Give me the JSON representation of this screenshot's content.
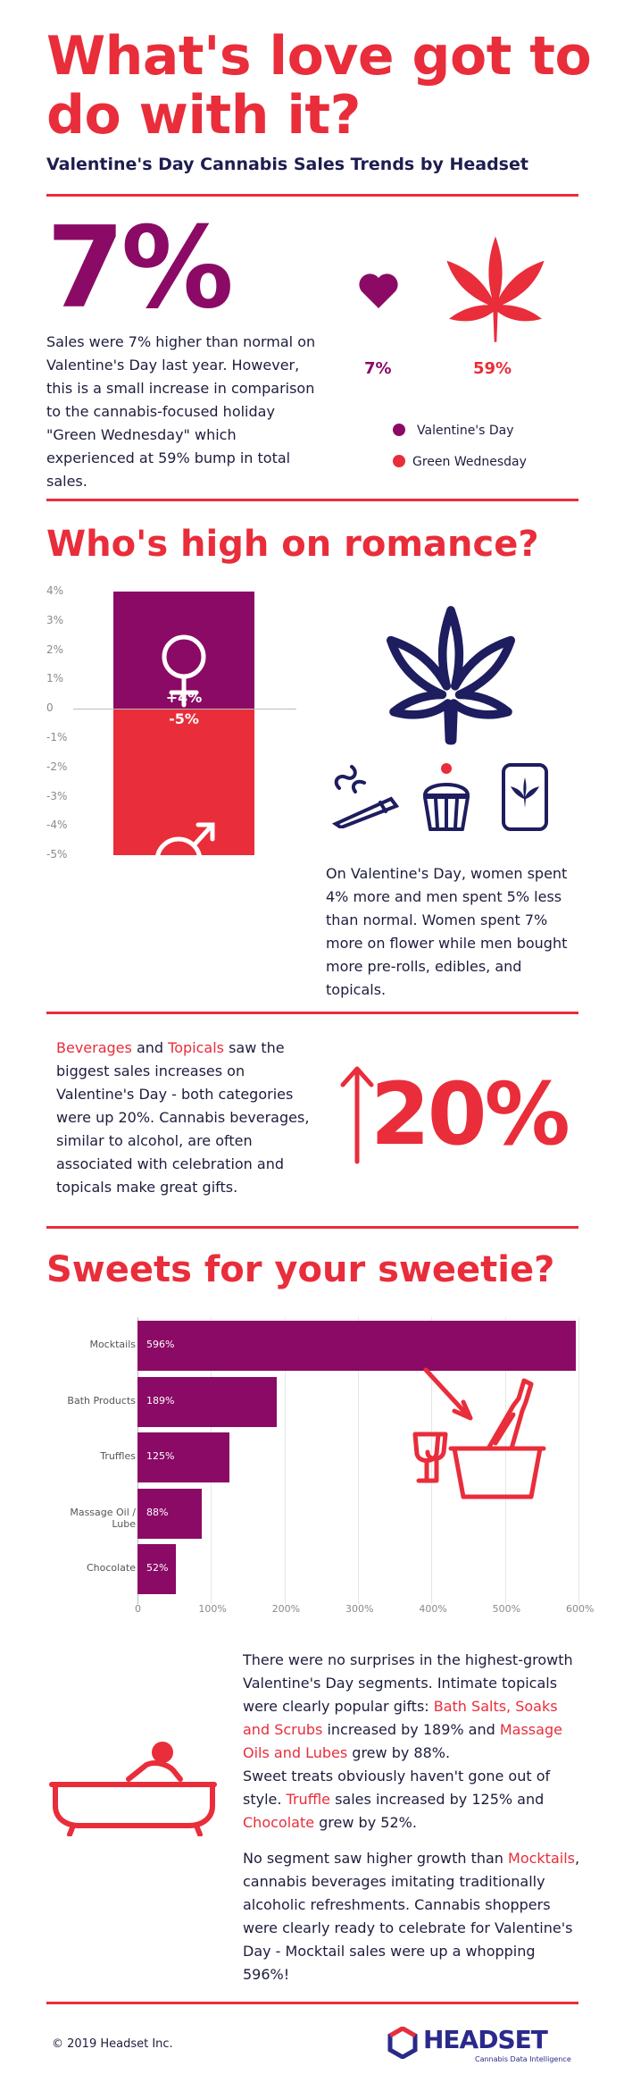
{
  "header": {
    "title": "What's love got to do with it?",
    "subtitle": "Valentine's Day Cannabis Sales Trends by Headset"
  },
  "section1": {
    "big_stat": "7%",
    "text": "Sales were 7% higher than normal on Valentine's Day last year. However, this is a small increase in comparison to the cannabis-focused holiday \"Green Wednesday\" which experienced at 59% bump in total sales.",
    "heart_label": "7%",
    "leaf_label": "59%",
    "legend": [
      {
        "label": "Valentine's Day",
        "color": "#8b0a66"
      },
      {
        "label": "Green Wednesday",
        "color": "#e92d3a"
      }
    ]
  },
  "section2": {
    "title": "Who's high on romance?",
    "women_label": "+4%",
    "men_label": "-5%",
    "text": "On Valentine's Day, women spent 4% more and men spent 5% less than normal. Women spent 7% more on flower while men bought more pre-rolls, edibles, and topicals."
  },
  "section3": {
    "beverages": "Beverages",
    "and": "and",
    "topicals": "Topicals",
    "text_after": "saw the biggest sales increases on Valentine's Day - both categories were up 20%. Cannabis beverages, similar to alcohol, are often associated with celebration and topicals make great gifts.",
    "big_stat": "20%"
  },
  "section4": {
    "title": "Sweets for your sweetie?",
    "p1_a": "There were no surprises in the highest-growth Valentine's Day segments. Intimate topicals were clearly popular gifts: ",
    "p1_b": "Bath Salts, Soaks and Scrubs",
    "p1_c": " increased by 189% and ",
    "p1_d": "Massage Oils and Lubes",
    "p1_e": " grew by 88%.",
    "p2_a": "Sweet treats obviously haven't gone out of style. ",
    "p2_b": "Truffle",
    "p2_c": " sales increased by 125% and ",
    "p2_d": "Chocolate",
    "p2_e": " grew by 52%.",
    "p3_a": "No segment saw higher growth than ",
    "p3_b": "Mocktails",
    "p3_c": ", cannabis beverages imitating traditionally alcoholic refreshments. Cannabis shoppers were clearly ready to celebrate for Valentine's Day - Mocktail sales were up a whopping 596%!"
  },
  "footer": {
    "copyright": "© 2019 Headset Inc.",
    "logo_text": "HEADSET",
    "logo_tagline": "Cannabis Data Intelligence"
  },
  "chart_data": [
    {
      "type": "bar",
      "orientation": "vertical",
      "categories": [
        "Women",
        "Men"
      ],
      "values": [
        4,
        -5
      ],
      "ylim": [
        -5,
        4
      ],
      "yticks": [
        "4%",
        "3%",
        "2%",
        "1%",
        "0",
        "-1%",
        "-2%",
        "-3%",
        "-4%",
        "-5%"
      ],
      "data_labels": [
        "+4%",
        "-5%"
      ],
      "colors": [
        "#8b0a66",
        "#e92d3a"
      ]
    },
    {
      "type": "bar",
      "orientation": "horizontal",
      "categories": [
        "Mocktails",
        "Bath Products",
        "Truffles",
        "Massage Oil / Lube",
        "Chocolate"
      ],
      "values": [
        596,
        189,
        125,
        88,
        52
      ],
      "data_labels": [
        "596%",
        "189%",
        "125%",
        "88%",
        "52%"
      ],
      "xlim": [
        0,
        600
      ],
      "xticks": [
        "0",
        "100%",
        "200%",
        "300%",
        "400%",
        "500%",
        "600%"
      ],
      "color": "#8b0a66"
    }
  ]
}
